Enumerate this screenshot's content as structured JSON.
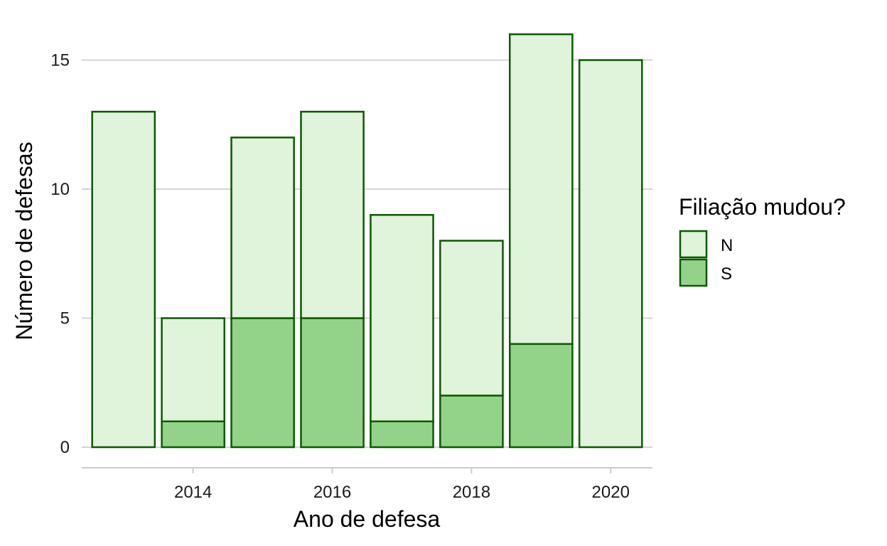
{
  "chart_data": {
    "type": "bar",
    "stacked": true,
    "x": [
      2013,
      2014,
      2015,
      2016,
      2017,
      2018,
      2019,
      2020
    ],
    "series": [
      {
        "name": "N",
        "values": [
          13,
          4,
          7,
          8,
          8,
          6,
          12,
          15
        ],
        "color": "#e0f3db"
      },
      {
        "name": "S",
        "values": [
          0,
          1,
          5,
          5,
          1,
          2,
          4,
          0
        ],
        "color": "#93d389"
      }
    ],
    "bar_border_color": "#0b5a00",
    "xlabel": "Ano de defesa",
    "ylabel": "Número de defesas",
    "x_ticks": [
      2014,
      2016,
      2018,
      2020
    ],
    "y_ticks": [
      0,
      5,
      10,
      15
    ],
    "ylim": [
      0,
      16
    ],
    "xlim": [
      2012.4,
      2020.6
    ],
    "grid": "horizontal",
    "legend": {
      "title": "Filiação mudou?",
      "placement": "right"
    }
  }
}
